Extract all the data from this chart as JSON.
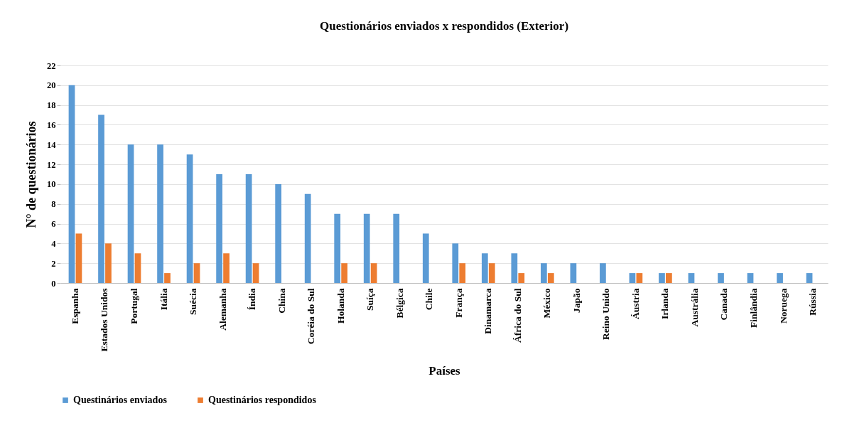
{
  "chart_data": {
    "type": "bar",
    "title": "Questionários enviados x respondidos (Exterior)",
    "xlabel": "Países",
    "ylabel": "N° de questionários",
    "categories": [
      "Espanha",
      "Estados Unidos",
      "Portugal",
      "Itália",
      "Suécia",
      "Alemanha",
      "Índia",
      "China",
      "Coréia do Sul",
      "Holanda",
      "Suíça",
      "Bélgica",
      "Chile",
      "França",
      "Dinamarca",
      "África do Sul",
      "México",
      "Japão",
      "Reino Unido",
      "Áustria",
      "Irlanda",
      "Austrália",
      "Canada",
      "Finlândia",
      "Noruega",
      "Rússia"
    ],
    "series": [
      {
        "name": "Questinários enviados",
        "color": "#5b9bd5",
        "values": [
          20,
          17,
          14,
          14,
          13,
          11,
          11,
          10,
          9,
          7,
          7,
          7,
          5,
          4,
          3,
          3,
          2,
          2,
          2,
          1,
          1,
          1,
          1,
          1,
          1,
          1
        ]
      },
      {
        "name": "Questinários respondidos",
        "color": "#ed7d31",
        "values": [
          5,
          4,
          3,
          1,
          2,
          3,
          2,
          0,
          0,
          2,
          2,
          0,
          0,
          2,
          2,
          1,
          1,
          0,
          0,
          1,
          1,
          0,
          0,
          0,
          0,
          0
        ]
      }
    ],
    "ylim": [
      0,
      22
    ],
    "yticks": [
      0,
      2,
      4,
      6,
      8,
      10,
      12,
      14,
      16,
      18,
      20,
      22
    ],
    "grid": "y",
    "legend": "bottom"
  }
}
